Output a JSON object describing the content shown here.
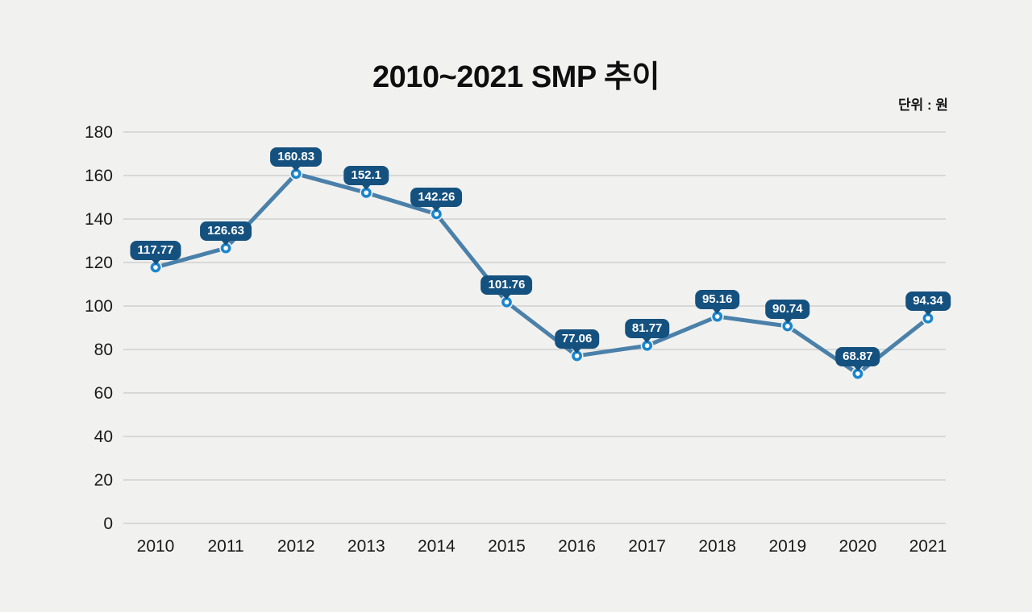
{
  "page": {
    "background_color": "#f1f1ef"
  },
  "chart_data": {
    "type": "line",
    "title": "2010~2021 SMP 추이",
    "unit_label": "단위 : 원",
    "categories": [
      "2010",
      "2011",
      "2012",
      "2013",
      "2014",
      "2015",
      "2016",
      "2017",
      "2018",
      "2019",
      "2020",
      "2021"
    ],
    "values": [
      117.77,
      126.63,
      160.83,
      152.1,
      142.26,
      101.76,
      77.06,
      81.77,
      95.16,
      90.74,
      68.87,
      94.34
    ],
    "data_labels": [
      "117.77",
      "126.63",
      "160.83",
      "152.1",
      "142.26",
      "101.76",
      "77.06",
      "81.77",
      "95.16",
      "90.74",
      "68.87",
      "94.34"
    ],
    "xlabel": "",
    "ylabel": "",
    "y_ticks": [
      0,
      20,
      40,
      60,
      80,
      100,
      120,
      140,
      160,
      180
    ],
    "ylim": [
      0,
      180
    ],
    "grid": true,
    "legend": "none",
    "colors": {
      "line": "#4a80a9",
      "marker_ring": "#1b86cd",
      "marker_fill": "#ffffff",
      "marker_halo": "#f1f1ef",
      "badge_bg": "#15517f",
      "badge_text": "#ffffff",
      "gridline": "#c9c9c8",
      "axis_text": "#1a1a1a"
    }
  }
}
